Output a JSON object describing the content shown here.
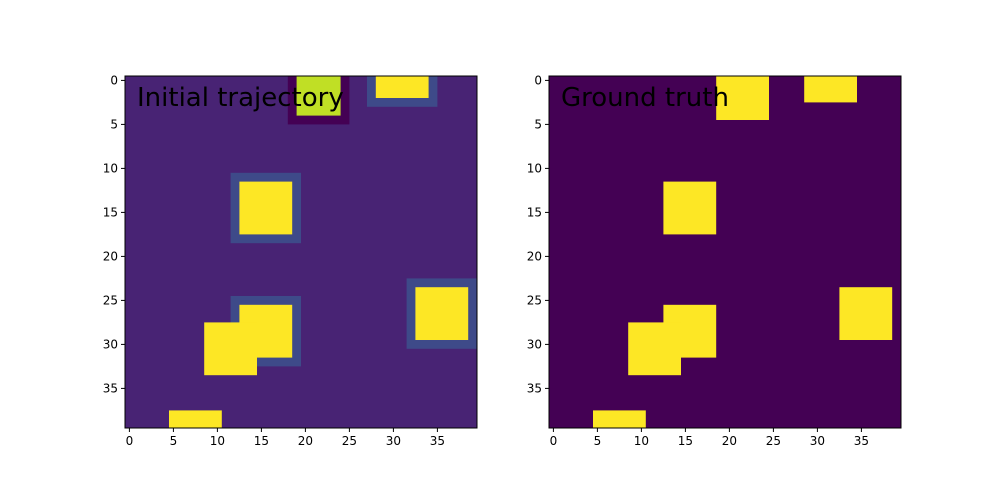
{
  "chart_data": [
    {
      "type": "heatmap",
      "title": "Initial trajectory",
      "grid_size": [
        40,
        40
      ],
      "xticks": [
        0,
        5,
        10,
        15,
        20,
        25,
        30,
        35
      ],
      "yticks": [
        0,
        5,
        10,
        15,
        20,
        25,
        30,
        35
      ],
      "colors": {
        "background": "#482374",
        "halo": "#3e4a89",
        "dark": "#440154",
        "block": "#fde725",
        "partial": "#c0df25"
      },
      "regions": [
        {
          "kind": "dark",
          "x": [
            18,
            25
          ],
          "y": [
            -0.5,
            5
          ]
        },
        {
          "kind": "partial",
          "x": [
            19,
            24
          ],
          "y": [
            -0.5,
            4
          ]
        },
        {
          "kind": "halo",
          "x": [
            27,
            35
          ],
          "y": [
            -0.5,
            3
          ]
        },
        {
          "kind": "block",
          "x": [
            28,
            34
          ],
          "y": [
            -0.5,
            2
          ]
        },
        {
          "kind": "halo",
          "x": [
            11.5,
            19.5
          ],
          "y": [
            10.5,
            18.5
          ]
        },
        {
          "kind": "block",
          "x": [
            12.5,
            18.5
          ],
          "y": [
            11.5,
            17.5
          ]
        },
        {
          "kind": "halo",
          "x": [
            31.5,
            39.5
          ],
          "y": [
            22.5,
            30.5
          ]
        },
        {
          "kind": "block",
          "x": [
            32.5,
            38.5
          ],
          "y": [
            23.5,
            29.5
          ]
        },
        {
          "kind": "halo",
          "x": [
            11.5,
            19.5
          ],
          "y": [
            24.5,
            32.5
          ]
        },
        {
          "kind": "block",
          "x": [
            12.5,
            18.5
          ],
          "y": [
            25.5,
            31.5
          ]
        },
        {
          "kind": "block",
          "x": [
            8.5,
            14.5
          ],
          "y": [
            27.5,
            33.5
          ]
        },
        {
          "kind": "block",
          "x": [
            4.5,
            10.5
          ],
          "y": [
            37.5,
            39.5
          ]
        }
      ]
    },
    {
      "type": "heatmap",
      "title": "Ground truth",
      "grid_size": [
        40,
        40
      ],
      "xticks": [
        0,
        5,
        10,
        15,
        20,
        25,
        30,
        35
      ],
      "yticks": [
        0,
        5,
        10,
        15,
        20,
        25,
        30,
        35
      ],
      "colors": {
        "background": "#440154",
        "block": "#fde725"
      },
      "regions": [
        {
          "kind": "block",
          "x": [
            18.5,
            24.5
          ],
          "y": [
            -0.5,
            4.5
          ]
        },
        {
          "kind": "block",
          "x": [
            28.5,
            34.5
          ],
          "y": [
            -0.5,
            2.5
          ]
        },
        {
          "kind": "block",
          "x": [
            12.5,
            18.5
          ],
          "y": [
            11.5,
            17.5
          ]
        },
        {
          "kind": "block",
          "x": [
            32.5,
            38.5
          ],
          "y": [
            23.5,
            29.5
          ]
        },
        {
          "kind": "block",
          "x": [
            12.5,
            18.5
          ],
          "y": [
            25.5,
            31.5
          ]
        },
        {
          "kind": "block",
          "x": [
            8.5,
            14.5
          ],
          "y": [
            27.5,
            33.5
          ]
        },
        {
          "kind": "block",
          "x": [
            4.5,
            10.5
          ],
          "y": [
            37.5,
            39.5
          ]
        }
      ]
    }
  ]
}
